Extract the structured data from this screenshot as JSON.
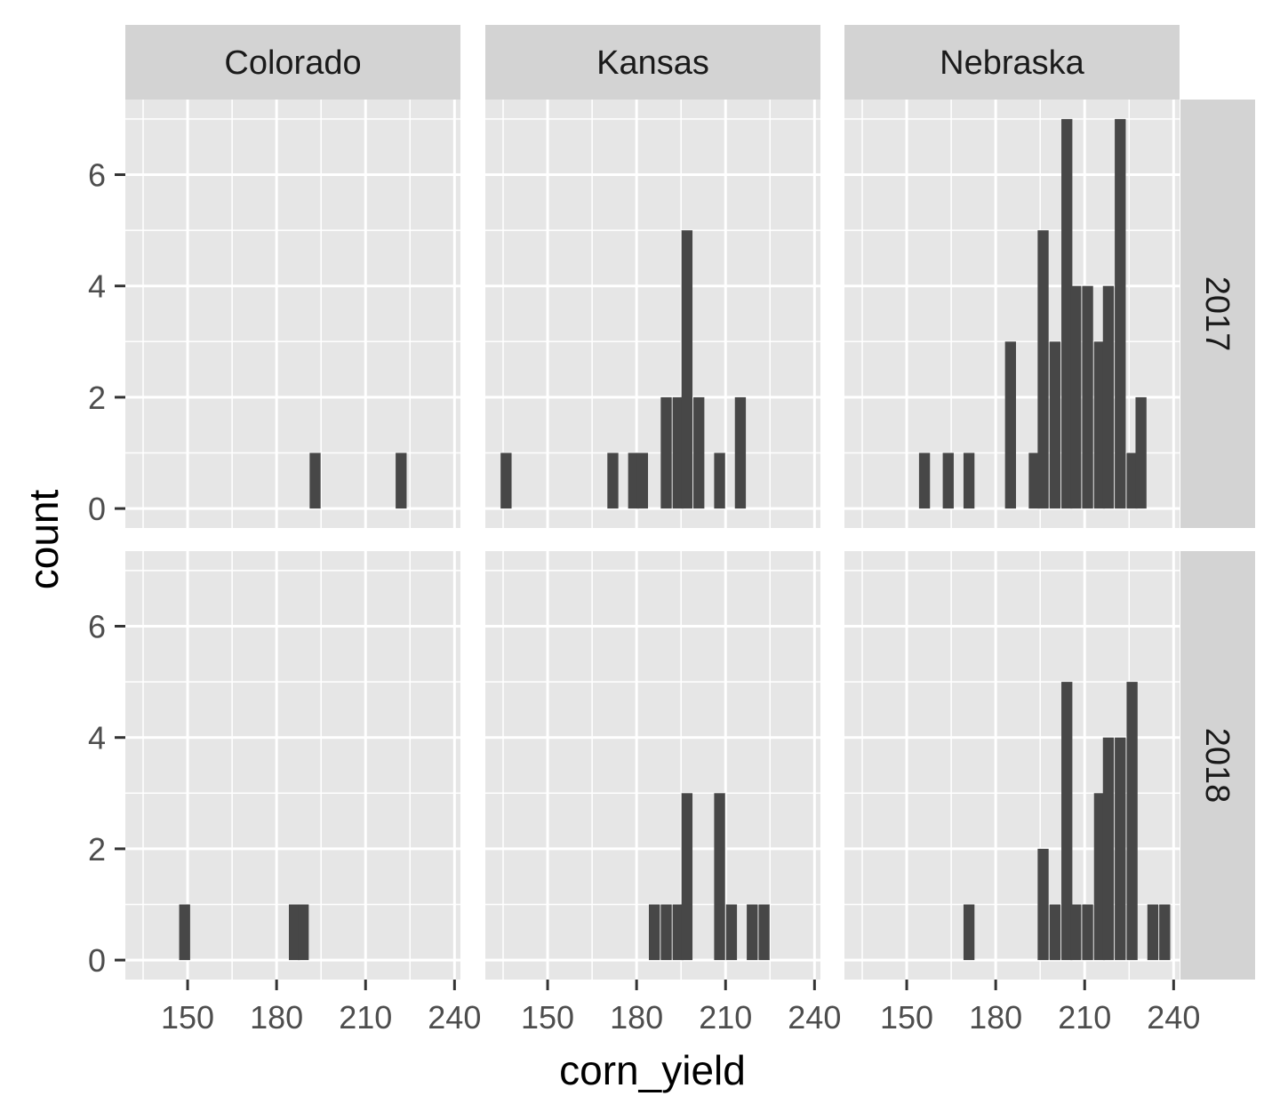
{
  "chart_data": {
    "type": "bar",
    "subtype": "faceted-histogram",
    "title": "",
    "xlabel": "corn_yield",
    "ylabel": "count",
    "xlim": [
      129,
      242
    ],
    "ylim": [
      -0.35,
      7.35
    ],
    "x_ticks": [
      150,
      180,
      210,
      240
    ],
    "x_tick_labels": [
      "150",
      "180",
      "210",
      "240"
    ],
    "y_ticks": [
      0,
      2,
      4,
      6
    ],
    "y_tick_labels": [
      "0",
      "2",
      "4",
      "6"
    ],
    "grid": true,
    "bin_width": 3.7,
    "column_facets": [
      "Colorado",
      "Kansas",
      "Nebraska"
    ],
    "row_facets": [
      "2017",
      "2018"
    ],
    "colors": {
      "bar": "#474747",
      "panel_bg": "#e6e6e6",
      "grid_major": "#ffffff",
      "strip_bg": "#d3d3d3"
    },
    "panels": [
      {
        "state": "Colorado",
        "year": "2017",
        "bins": [
          {
            "x": 193,
            "count": 1
          },
          {
            "x": 222,
            "count": 1
          }
        ]
      },
      {
        "state": "Kansas",
        "year": "2017",
        "bins": [
          {
            "x": 136,
            "count": 1
          },
          {
            "x": 172,
            "count": 1
          },
          {
            "x": 179,
            "count": 1
          },
          {
            "x": 182,
            "count": 1
          },
          {
            "x": 190,
            "count": 2
          },
          {
            "x": 194,
            "count": 2
          },
          {
            "x": 197,
            "count": 5
          },
          {
            "x": 201,
            "count": 2
          },
          {
            "x": 208,
            "count": 1
          },
          {
            "x": 215,
            "count": 2
          }
        ]
      },
      {
        "state": "Nebraska",
        "year": "2017",
        "bins": [
          {
            "x": 156,
            "count": 1
          },
          {
            "x": 164,
            "count": 1
          },
          {
            "x": 171,
            "count": 1
          },
          {
            "x": 185,
            "count": 3
          },
          {
            "x": 193,
            "count": 1
          },
          {
            "x": 196,
            "count": 5
          },
          {
            "x": 200,
            "count": 3
          },
          {
            "x": 204,
            "count": 7
          },
          {
            "x": 207,
            "count": 4
          },
          {
            "x": 211,
            "count": 4
          },
          {
            "x": 215,
            "count": 3
          },
          {
            "x": 218,
            "count": 4
          },
          {
            "x": 222,
            "count": 7
          },
          {
            "x": 226,
            "count": 1
          },
          {
            "x": 229,
            "count": 2
          }
        ]
      },
      {
        "state": "Colorado",
        "year": "2018",
        "bins": [
          {
            "x": 149,
            "count": 1
          },
          {
            "x": 186,
            "count": 1
          },
          {
            "x": 189,
            "count": 1
          }
        ]
      },
      {
        "state": "Kansas",
        "year": "2018",
        "bins": [
          {
            "x": 186,
            "count": 1
          },
          {
            "x": 190,
            "count": 1
          },
          {
            "x": 194,
            "count": 1
          },
          {
            "x": 197,
            "count": 3
          },
          {
            "x": 208,
            "count": 3
          },
          {
            "x": 212,
            "count": 1
          },
          {
            "x": 219,
            "count": 1
          },
          {
            "x": 223,
            "count": 1
          }
        ]
      },
      {
        "state": "Nebraska",
        "year": "2018",
        "bins": [
          {
            "x": 171,
            "count": 1
          },
          {
            "x": 196,
            "count": 2
          },
          {
            "x": 200,
            "count": 1
          },
          {
            "x": 204,
            "count": 5
          },
          {
            "x": 207,
            "count": 1
          },
          {
            "x": 211,
            "count": 1
          },
          {
            "x": 215,
            "count": 3
          },
          {
            "x": 218,
            "count": 4
          },
          {
            "x": 222,
            "count": 4
          },
          {
            "x": 226,
            "count": 5
          },
          {
            "x": 233,
            "count": 1
          },
          {
            "x": 237,
            "count": 1
          }
        ]
      }
    ]
  }
}
